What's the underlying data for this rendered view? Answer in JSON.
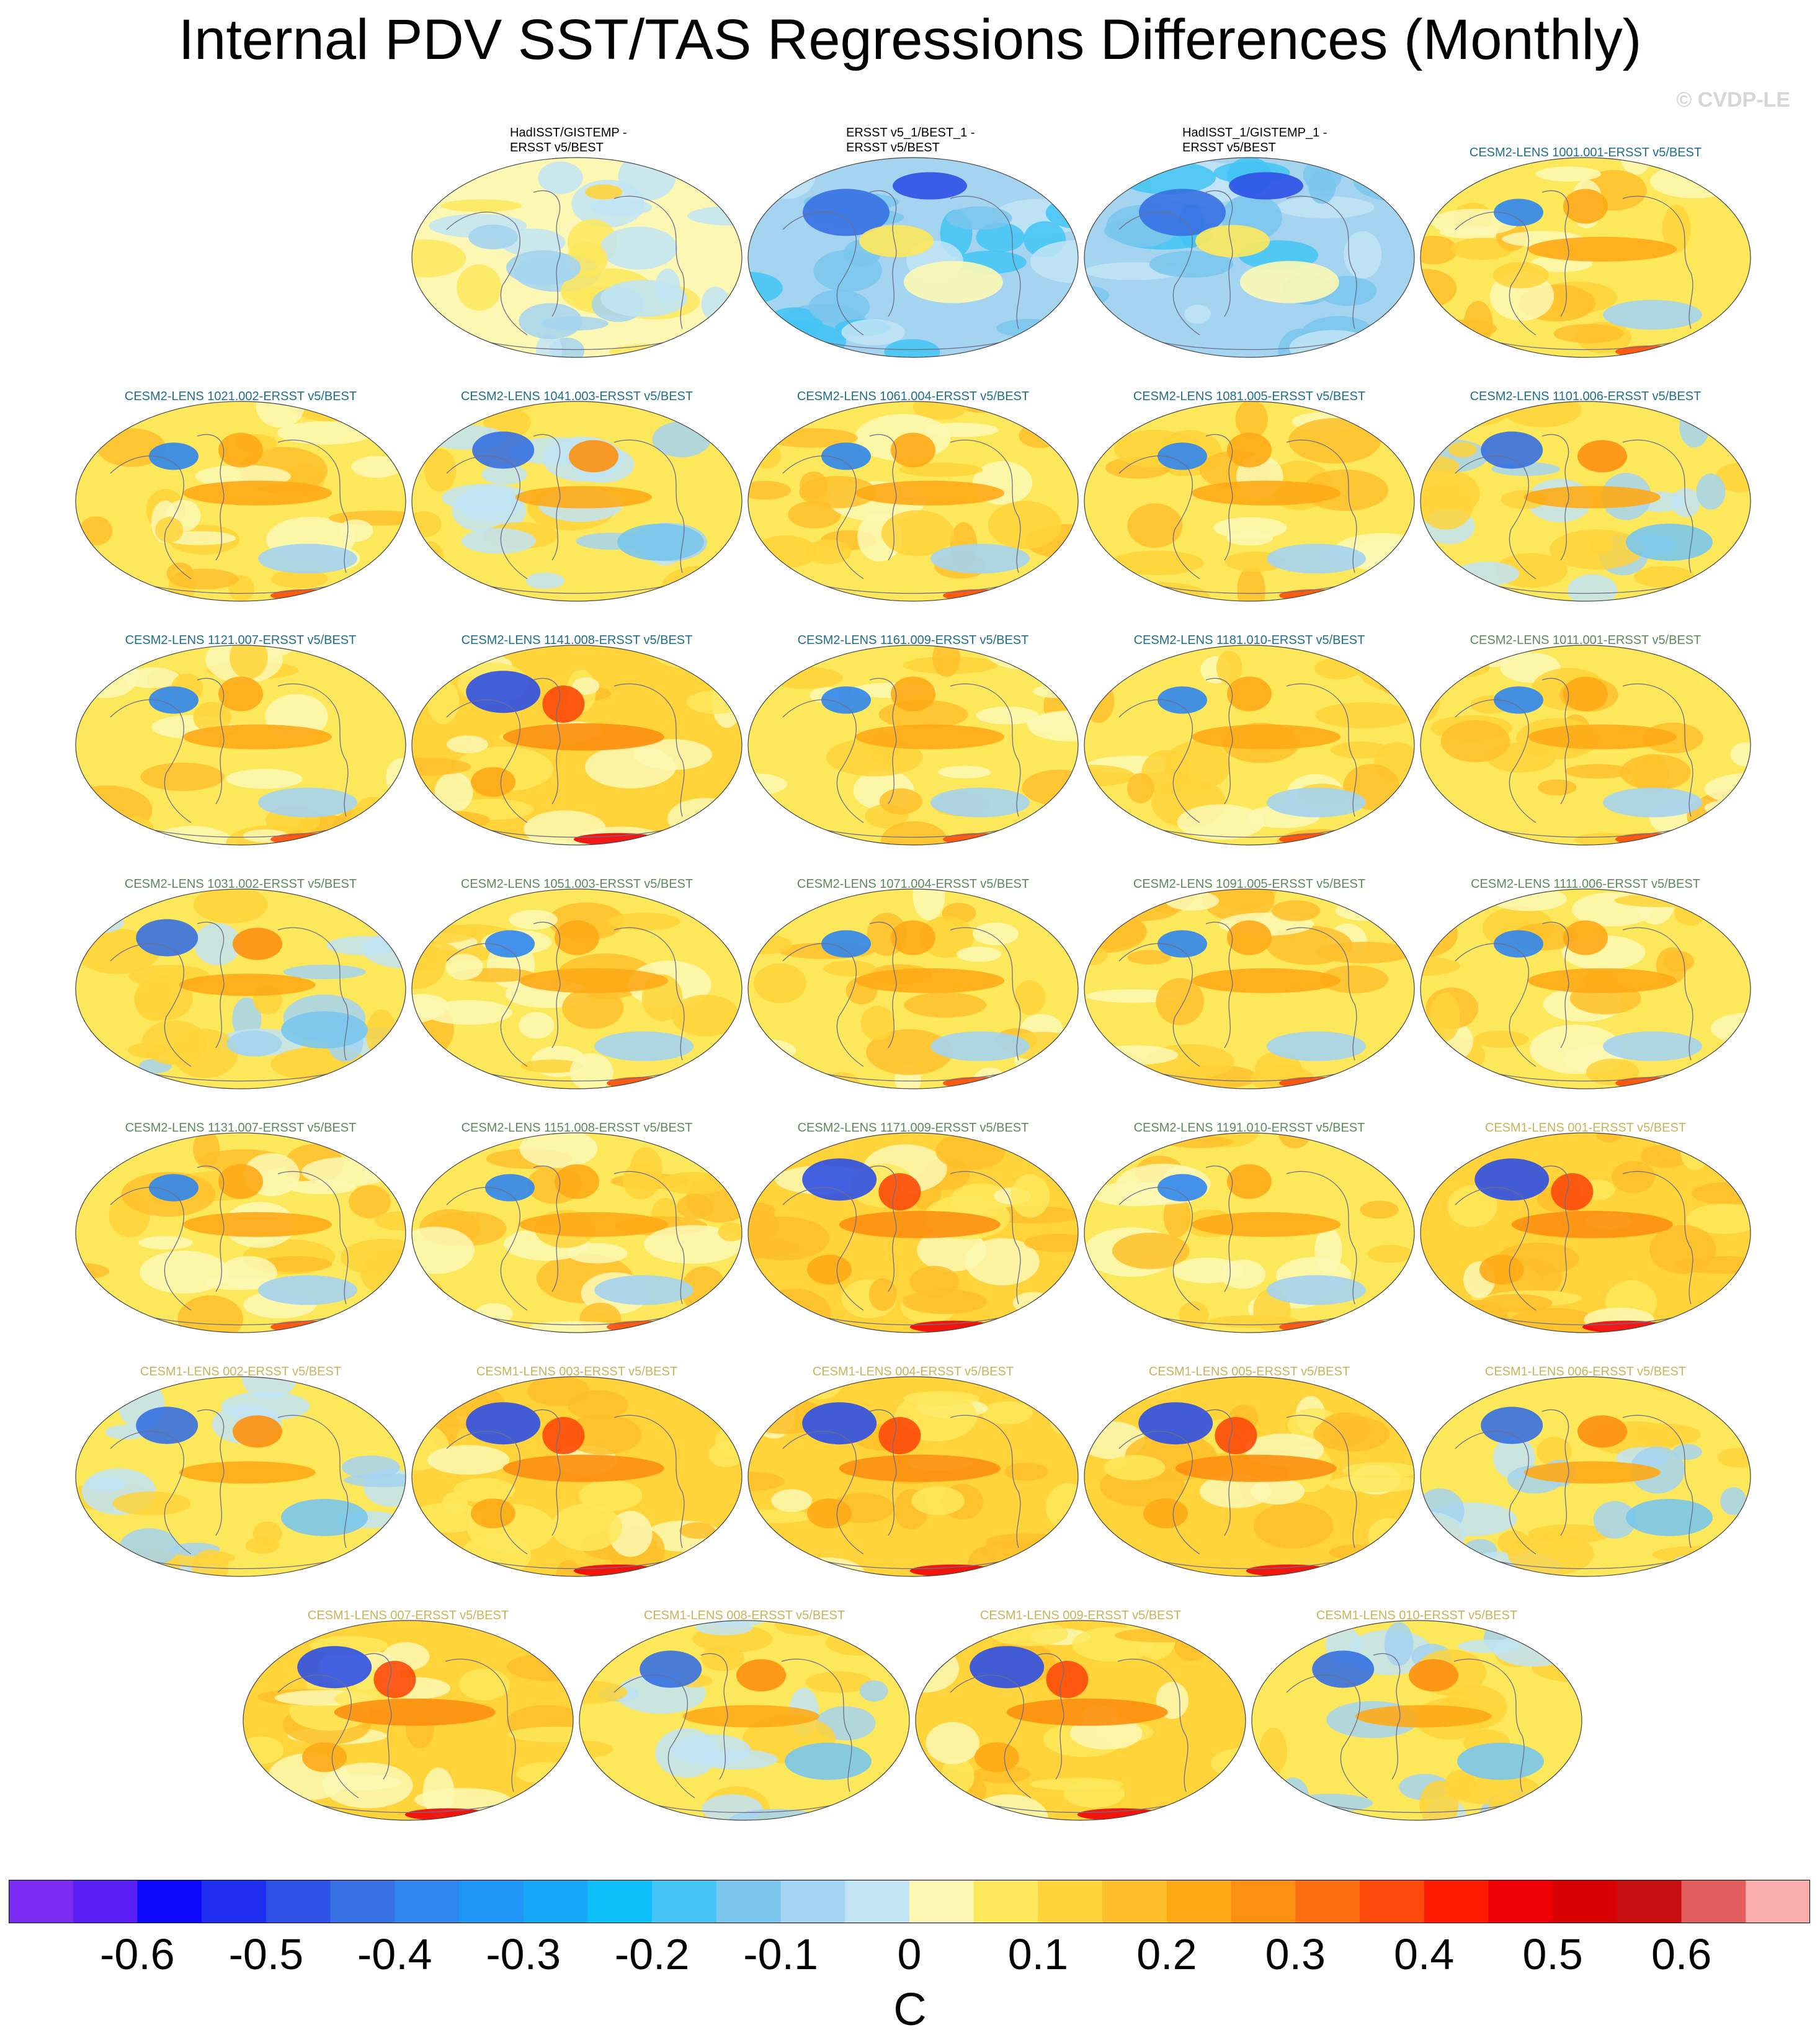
{
  "title": "Internal PDV SST/TAS Regressions Differences (Monthly)",
  "watermark": "© CVDP-LE",
  "label_colors": {
    "obs": "#000000",
    "cesm2_first": "#1f6e8c",
    "cesm2_second": "#5d8a5d",
    "cesm1": "#c8b45a"
  },
  "panels": [
    {
      "row": 0,
      "col": 1,
      "label": "HadISST/GISTEMP -",
      "label2": "ERSST v5/BEST",
      "group": "obs",
      "pattern": "neutral"
    },
    {
      "row": 0,
      "col": 2,
      "label": "ERSST v5_1/BEST_1 -",
      "label2": "ERSST v5/BEST",
      "group": "obs",
      "pattern": "cool"
    },
    {
      "row": 0,
      "col": 3,
      "label": "HadISST_1/GISTEMP_1 -",
      "label2": "ERSST v5/BEST",
      "group": "obs",
      "pattern": "cool"
    },
    {
      "row": 0,
      "col": 4,
      "label": "CESM2-LENS 1001.001-ERSST v5/BEST",
      "group": "cesm2_first",
      "pattern": "warm"
    },
    {
      "row": 1,
      "col": 0,
      "label": "CESM2-LENS 1021.002-ERSST v5/BEST",
      "group": "cesm2_first",
      "pattern": "warm"
    },
    {
      "row": 1,
      "col": 1,
      "label": "CESM2-LENS 1041.003-ERSST v5/BEST",
      "group": "cesm2_first",
      "pattern": "mixed"
    },
    {
      "row": 1,
      "col": 2,
      "label": "CESM2-LENS 1061.004-ERSST v5/BEST",
      "group": "cesm2_first",
      "pattern": "warm"
    },
    {
      "row": 1,
      "col": 3,
      "label": "CESM2-LENS 1081.005-ERSST v5/BEST",
      "group": "cesm2_first",
      "pattern": "warm"
    },
    {
      "row": 1,
      "col": 4,
      "label": "CESM2-LENS 1101.006-ERSST v5/BEST",
      "group": "cesm2_first",
      "pattern": "mixed"
    },
    {
      "row": 2,
      "col": 0,
      "label": "CESM2-LENS 1121.007-ERSST v5/BEST",
      "group": "cesm2_first",
      "pattern": "warm"
    },
    {
      "row": 2,
      "col": 1,
      "label": "CESM2-LENS 1141.008-ERSST v5/BEST",
      "group": "cesm2_first",
      "pattern": "hot"
    },
    {
      "row": 2,
      "col": 2,
      "label": "CESM2-LENS 1161.009-ERSST v5/BEST",
      "group": "cesm2_first",
      "pattern": "warm"
    },
    {
      "row": 2,
      "col": 3,
      "label": "CESM2-LENS 1181.010-ERSST v5/BEST",
      "group": "cesm2_first",
      "pattern": "warm"
    },
    {
      "row": 2,
      "col": 4,
      "label": "CESM2-LENS 1011.001-ERSST v5/BEST",
      "group": "cesm2_second",
      "pattern": "warm"
    },
    {
      "row": 3,
      "col": 0,
      "label": "CESM2-LENS 1031.002-ERSST v5/BEST",
      "group": "cesm2_second",
      "pattern": "mixed"
    },
    {
      "row": 3,
      "col": 1,
      "label": "CESM2-LENS 1051.003-ERSST v5/BEST",
      "group": "cesm2_second",
      "pattern": "warm"
    },
    {
      "row": 3,
      "col": 2,
      "label": "CESM2-LENS 1071.004-ERSST v5/BEST",
      "group": "cesm2_second",
      "pattern": "warm"
    },
    {
      "row": 3,
      "col": 3,
      "label": "CESM2-LENS 1091.005-ERSST v5/BEST",
      "group": "cesm2_second",
      "pattern": "warm"
    },
    {
      "row": 3,
      "col": 4,
      "label": "CESM2-LENS 1111.006-ERSST v5/BEST",
      "group": "cesm2_second",
      "pattern": "warm"
    },
    {
      "row": 4,
      "col": 0,
      "label": "CESM2-LENS 1131.007-ERSST v5/BEST",
      "group": "cesm2_second",
      "pattern": "warm"
    },
    {
      "row": 4,
      "col": 1,
      "label": "CESM2-LENS 1151.008-ERSST v5/BEST",
      "group": "cesm2_second",
      "pattern": "warm"
    },
    {
      "row": 4,
      "col": 2,
      "label": "CESM2-LENS 1171.009-ERSST v5/BEST",
      "group": "cesm2_second",
      "pattern": "hot"
    },
    {
      "row": 4,
      "col": 3,
      "label": "CESM2-LENS 1191.010-ERSST v5/BEST",
      "group": "cesm2_second",
      "pattern": "warm"
    },
    {
      "row": 4,
      "col": 4,
      "label": "CESM1-LENS 001-ERSST v5/BEST",
      "group": "cesm1",
      "pattern": "hot"
    },
    {
      "row": 5,
      "col": 0,
      "label": "CESM1-LENS 002-ERSST v5/BEST",
      "group": "cesm1",
      "pattern": "mixed"
    },
    {
      "row": 5,
      "col": 1,
      "label": "CESM1-LENS 003-ERSST v5/BEST",
      "group": "cesm1",
      "pattern": "hot"
    },
    {
      "row": 5,
      "col": 2,
      "label": "CESM1-LENS 004-ERSST v5/BEST",
      "group": "cesm1",
      "pattern": "hot"
    },
    {
      "row": 5,
      "col": 3,
      "label": "CESM1-LENS 005-ERSST v5/BEST",
      "group": "cesm1",
      "pattern": "hot"
    },
    {
      "row": 5,
      "col": 4,
      "label": "CESM1-LENS 006-ERSST v5/BEST",
      "group": "cesm1",
      "pattern": "mixed"
    },
    {
      "row": 6,
      "col": 0,
      "label": "CESM1-LENS 007-ERSST v5/BEST",
      "group": "cesm1",
      "pattern": "hot"
    },
    {
      "row": 6,
      "col": 1,
      "label": "CESM1-LENS 008-ERSST v5/BEST",
      "group": "cesm1",
      "pattern": "mixed"
    },
    {
      "row": 6,
      "col": 2,
      "label": "CESM1-LENS 009-ERSST v5/BEST",
      "group": "cesm1",
      "pattern": "hot"
    },
    {
      "row": 6,
      "col": 3,
      "label": "CESM1-LENS 010-ERSST v5/BEST",
      "group": "cesm1",
      "pattern": "mixed"
    }
  ],
  "colorbar": {
    "colors": [
      "#7b2bf0",
      "#5a1ef5",
      "#0b08fb",
      "#1f2ef0",
      "#2e50e6",
      "#3670e2",
      "#2f86ef",
      "#1e96f7",
      "#16a8f7",
      "#0dc0f9",
      "#43c4f4",
      "#7ac6ec",
      "#a4d4f0",
      "#c1e4f4",
      "#fcf8b4",
      "#fde85c",
      "#fed43a",
      "#fec02a",
      "#feaa16",
      "#fd9010",
      "#fc7010",
      "#fd4a0a",
      "#fd1c00",
      "#ef0006",
      "#d90004",
      "#c70e10",
      "#e25e5e",
      "#f9acac"
    ],
    "tick_labels": [
      "-0.6",
      "-0.5",
      "-0.4",
      "-0.3",
      "-0.2",
      "-0.1",
      "0",
      "0.1",
      "0.2",
      "0.3",
      "0.4",
      "0.5",
      "0.6"
    ],
    "units": "C"
  }
}
